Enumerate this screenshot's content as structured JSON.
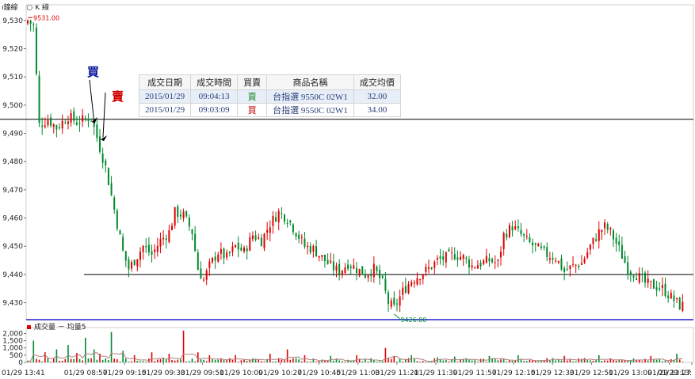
{
  "toolbar": {
    "tab_minute": "ı鐘線",
    "tab_kline": "K 線",
    "kline_icon": "radio-circle-icon"
  },
  "price_axis": {
    "ticks": [
      "9,530",
      "9,520",
      "9,510",
      "9,500",
      "9,490",
      "9,480",
      "9,470",
      "9,460",
      "9,450",
      "9,440",
      "9,430"
    ]
  },
  "volume_axis": {
    "ticks": [
      "2,000",
      "1,500",
      "1,000",
      "500",
      "0"
    ]
  },
  "time_axis": {
    "ticks": [
      "01/29 13:41",
      "01/29 08:57",
      "01/29 09:15",
      "01/29 09:33",
      "01/29 09:51",
      "01/29 10:09",
      "01/29 10:27",
      "01/29 10:45",
      "01/29 11:03",
      "01/29 11:21",
      "01/29 11:39",
      "01/29 11:57",
      "01/29 12:15",
      "01/29 12:33",
      "01/29 12:51",
      "01/29 13:09",
      "01/29 13:27",
      "01/29 13:"
    ]
  },
  "legend": {
    "volume_label": "成交量 － 均量5"
  },
  "annotations": {
    "buy_marker": "買",
    "sell_marker": "賣",
    "high_label": "9531.00",
    "low_label": "9426.00"
  },
  "trade_table": {
    "headers": [
      "成交日期",
      "成交時間",
      "買賣",
      "商品名稱",
      "成交均價"
    ],
    "rows": [
      [
        "2015/01/29",
        "09:04:13",
        "賣",
        "台指選 9550C 02W1",
        "32.00"
      ],
      [
        "2015/01/29",
        "09:03:09",
        "買",
        "台指選 9550C 02W1",
        "34.00"
      ]
    ]
  },
  "colors": {
    "up": "#e00000",
    "down": "#008a2e",
    "volume": "#e00000",
    "volume_avg": "#b08080",
    "buy_marker": "#00109e",
    "sell_marker": "#d00000",
    "base_line": "#1e1ed0",
    "ref_line": "#000000"
  },
  "chart_data": {
    "type": "candlestick",
    "price_range": [
      9426,
      9531
    ],
    "ylim": [
      9424,
      9535
    ],
    "volume_ylim": [
      0,
      2300
    ],
    "reference_lines": [
      9495,
      9440
    ],
    "base_line": 9424,
    "high": 9531,
    "low": 9426,
    "close_path": [
      [
        0,
        9530
      ],
      [
        2,
        9528
      ],
      [
        4,
        9493
      ],
      [
        7,
        9495
      ],
      [
        10,
        9492
      ],
      [
        14,
        9496
      ],
      [
        17,
        9494
      ],
      [
        20,
        9495
      ],
      [
        22,
        9496
      ],
      [
        23,
        9492
      ],
      [
        25,
        9485
      ],
      [
        27,
        9478
      ],
      [
        29,
        9468
      ],
      [
        31,
        9458
      ],
      [
        33,
        9448
      ],
      [
        35,
        9442
      ],
      [
        37,
        9445
      ],
      [
        40,
        9450
      ],
      [
        43,
        9447
      ],
      [
        46,
        9452
      ],
      [
        49,
        9455
      ],
      [
        51,
        9462
      ],
      [
        54,
        9461
      ],
      [
        57,
        9455
      ],
      [
        59,
        9442
      ],
      [
        61,
        9438
      ],
      [
        63,
        9443
      ],
      [
        66,
        9448
      ],
      [
        69,
        9446
      ],
      [
        72,
        9450
      ],
      [
        75,
        9448
      ],
      [
        78,
        9454
      ],
      [
        81,
        9452
      ],
      [
        84,
        9458
      ],
      [
        87,
        9462
      ],
      [
        90,
        9460
      ],
      [
        93,
        9455
      ],
      [
        96,
        9450
      ],
      [
        99,
        9449
      ],
      [
        102,
        9446
      ],
      [
        105,
        9443
      ],
      [
        108,
        9441
      ],
      [
        111,
        9444
      ],
      [
        114,
        9442
      ],
      [
        117,
        9440
      ],
      [
        120,
        9442
      ],
      [
        123,
        9437
      ],
      [
        125,
        9430
      ],
      [
        127,
        9428
      ],
      [
        130,
        9434
      ],
      [
        133,
        9438
      ],
      [
        136,
        9440
      ],
      [
        139,
        9442
      ],
      [
        142,
        9445
      ],
      [
        145,
        9446
      ],
      [
        148,
        9447
      ],
      [
        151,
        9446
      ],
      [
        154,
        9443
      ],
      [
        157,
        9444
      ],
      [
        160,
        9445
      ],
      [
        163,
        9444
      ],
      [
        165,
        9454
      ],
      [
        168,
        9457
      ],
      [
        171,
        9454
      ],
      [
        174,
        9451
      ],
      [
        177,
        9449
      ],
      [
        180,
        9447
      ],
      [
        183,
        9446
      ],
      [
        186,
        9441
      ],
      [
        189,
        9443
      ],
      [
        192,
        9444
      ],
      [
        195,
        9450
      ],
      [
        198,
        9455
      ],
      [
        200,
        9457
      ],
      [
        202,
        9455
      ],
      [
        205,
        9449
      ],
      [
        208,
        9442
      ],
      [
        211,
        9440
      ],
      [
        214,
        9437
      ],
      [
        217,
        9436
      ],
      [
        220,
        9435
      ],
      [
        223,
        9432
      ],
      [
        226,
        9429
      ]
    ],
    "volume_spikes": [
      [
        2,
        1500
      ],
      [
        6,
        700
      ],
      [
        10,
        900
      ],
      [
        14,
        1200
      ],
      [
        17,
        650
      ],
      [
        20,
        1700
      ],
      [
        23,
        900
      ],
      [
        25,
        600
      ],
      [
        29,
        2100
      ],
      [
        33,
        800
      ],
      [
        37,
        500
      ],
      [
        43,
        700
      ],
      [
        49,
        600
      ],
      [
        54,
        2200
      ],
      [
        59,
        700
      ],
      [
        63,
        500
      ],
      [
        72,
        500
      ],
      [
        84,
        600
      ],
      [
        90,
        900
      ],
      [
        96,
        500
      ],
      [
        105,
        450
      ],
      [
        114,
        500
      ],
      [
        124,
        1000
      ],
      [
        127,
        450
      ],
      [
        133,
        500
      ],
      [
        142,
        350
      ],
      [
        148,
        400
      ],
      [
        160,
        450
      ],
      [
        170,
        500
      ],
      [
        186,
        450
      ],
      [
        198,
        500
      ],
      [
        216,
        450
      ],
      [
        225,
        600
      ]
    ]
  }
}
